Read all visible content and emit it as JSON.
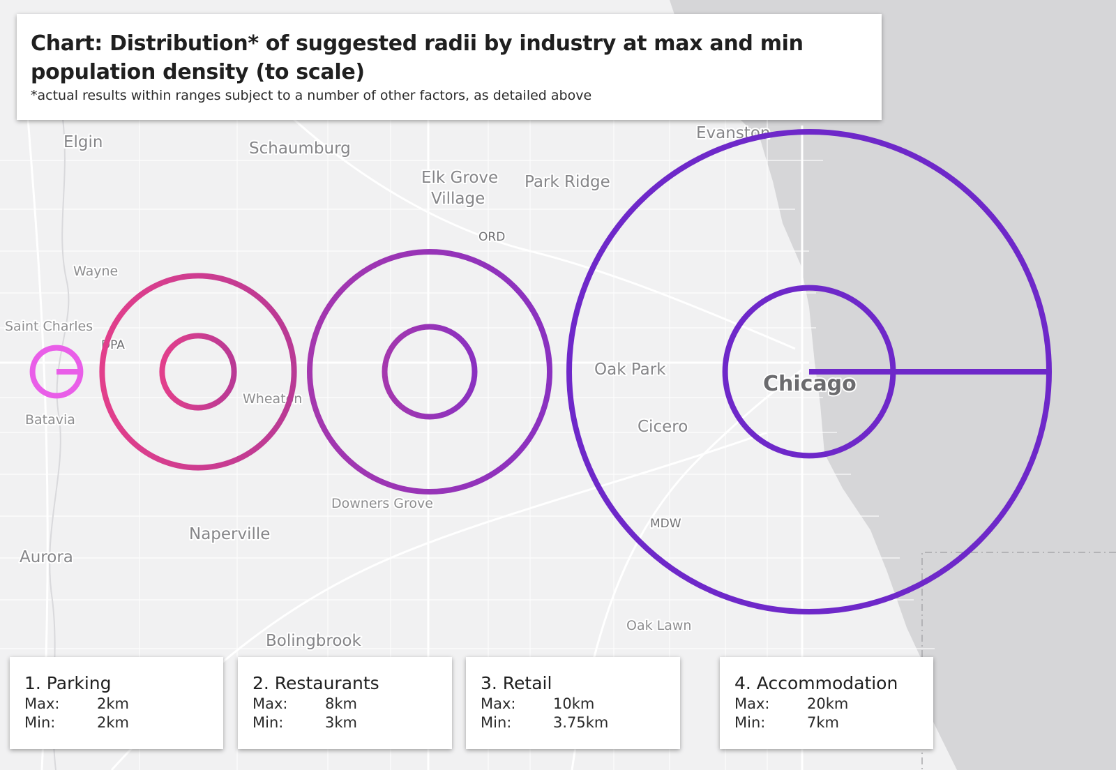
{
  "title": {
    "heading": "Chart: Distribution* of suggested radii by industry at max and min population density (to scale)",
    "footnote": "*actual results within ranges subject to a number of other factors, as detailed above"
  },
  "map_labels": {
    "elgin": "Elgin",
    "schaumburg": "Schaumburg",
    "elk_grove_line1": "Elk Grove",
    "elk_grove_line2": "Village",
    "park_ridge": "Park Ridge",
    "evanston": "Evanston",
    "ord": "ORD",
    "wayne": "Wayne",
    "saint_charles": "Saint Charles",
    "dpa": "DPA",
    "wheaton": "Wheaton",
    "batavia": "Batavia",
    "oak_park": "Oak Park",
    "chicago": "Chicago",
    "cicero": "Cicero",
    "downers_grove": "Downers Grove",
    "mdw": "MDW",
    "naperville": "Naperville",
    "aurora": "Aurora",
    "oak_lawn": "Oak Lawn",
    "bolingbrook": "Bolingbrook"
  },
  "labels": {
    "max": "Max:",
    "min": "Min:"
  },
  "industries": [
    {
      "name": "1. Parking",
      "max": "2km",
      "min": "2km",
      "max_km": 2,
      "min_km": 2,
      "color": "#e95ee8"
    },
    {
      "name": "2. Restaurants",
      "max": "8km",
      "min": "3km",
      "max_km": 8,
      "min_km": 3,
      "color": "#c9397f"
    },
    {
      "name": "3. Retail",
      "max": "10km",
      "min": "3.75km",
      "max_km": 10,
      "min_km": 3.75,
      "color": "#9a36b6"
    },
    {
      "name": "4. Accommodation",
      "max": "20km",
      "min": "7km",
      "max_km": 20,
      "min_km": 7,
      "color": "#6e28c9"
    }
  ],
  "colors": {
    "land": "#f1f1f2",
    "water": "#d6d6d8",
    "road": "#ffffff"
  }
}
